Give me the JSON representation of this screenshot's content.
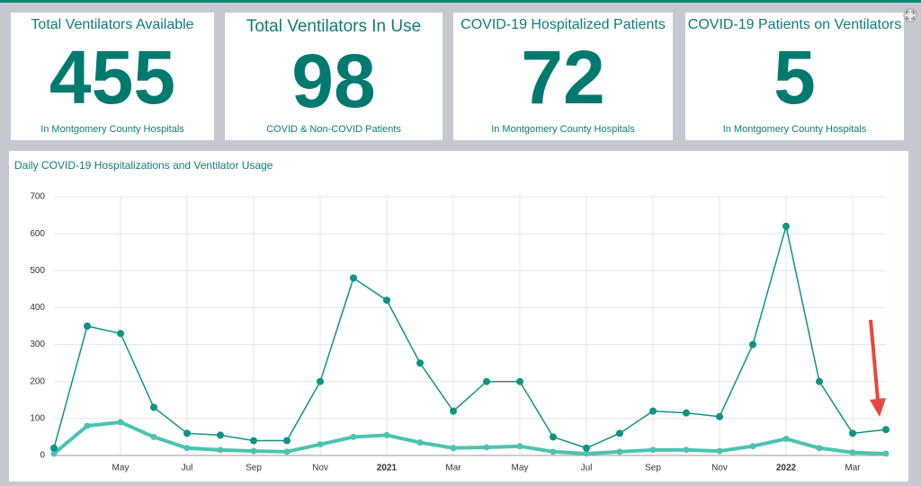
{
  "cards": [
    {
      "title": "Total Ventilators Available",
      "value": "455",
      "subtitle": "In Montgomery County Hospitals"
    },
    {
      "title": "Total Ventilators In Use",
      "value": "98",
      "subtitle": "COVID & Non-COVID Patients"
    },
    {
      "title": "COVID-19 Hospitalized Patients",
      "value": "72",
      "subtitle": "In Montgomery County Hospitals"
    },
    {
      "title": "COVID-19 Patients on Ventilators",
      "value": "5",
      "subtitle": "In Montgomery County Hospitals"
    }
  ],
  "chart_data": {
    "type": "line",
    "title": "Daily COVID-19 Hospitalizations and Ventilator Usage",
    "x": [
      "2020-03",
      "2020-04",
      "2020-05",
      "2020-06",
      "2020-07",
      "2020-08",
      "2020-09",
      "2020-10",
      "2020-11",
      "2020-12",
      "2021-01",
      "2021-02",
      "2021-03",
      "2021-04",
      "2021-05",
      "2021-06",
      "2021-07",
      "2021-08",
      "2021-09",
      "2021-10",
      "2021-11",
      "2021-12",
      "2022-01",
      "2022-02",
      "2022-03",
      "2022-04"
    ],
    "series": [
      {
        "color": "#0e9384",
        "values": [
          20,
          350,
          330,
          130,
          60,
          55,
          40,
          40,
          200,
          480,
          420,
          250,
          120,
          200,
          200,
          50,
          20,
          60,
          120,
          115,
          105,
          300,
          620,
          200,
          60,
          70
        ]
      },
      {
        "color": "#4cc3b0",
        "values": [
          5,
          80,
          90,
          50,
          20,
          15,
          12,
          10,
          30,
          50,
          55,
          35,
          20,
          22,
          25,
          10,
          5,
          10,
          15,
          15,
          12,
          25,
          45,
          20,
          8,
          5
        ]
      }
    ],
    "xlim": [
      "2020-03",
      "2022-04"
    ],
    "xticks": [
      {
        "value": "2020-05",
        "label": "May"
      },
      {
        "value": "2020-07",
        "label": "Jul"
      },
      {
        "value": "2020-09",
        "label": "Sep"
      },
      {
        "value": "2020-11",
        "label": "Nov"
      },
      {
        "value": "2021-01",
        "label": "2021"
      },
      {
        "value": "2021-03",
        "label": "Mar"
      },
      {
        "value": "2021-05",
        "label": "May"
      },
      {
        "value": "2021-07",
        "label": "Jul"
      },
      {
        "value": "2021-09",
        "label": "Sep"
      },
      {
        "value": "2021-11",
        "label": "Nov"
      },
      {
        "value": "2022-01",
        "label": "2022"
      },
      {
        "value": "2022-03",
        "label": "Mar"
      }
    ],
    "ylim": [
      0,
      700
    ],
    "yticks": [
      0,
      100,
      200,
      300,
      400,
      500,
      600,
      700
    ],
    "grid": true
  }
}
